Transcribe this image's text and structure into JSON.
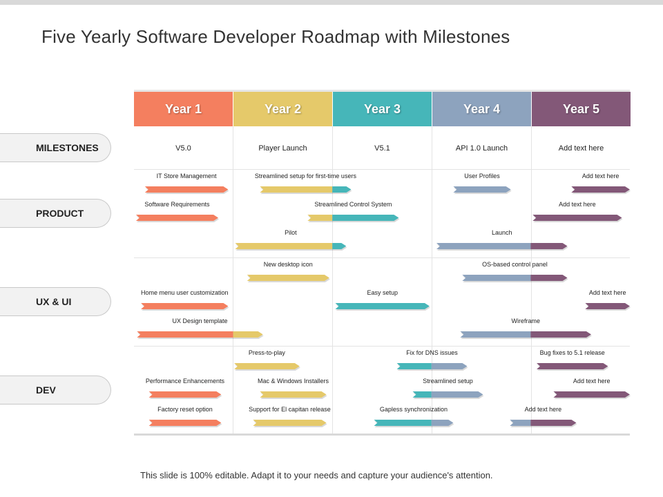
{
  "title": "Five Yearly Software Developer Roadmap with Milestones",
  "years": [
    {
      "label": "Year 1",
      "color": "#F47F5F"
    },
    {
      "label": "Year 2",
      "color": "#E5C96A"
    },
    {
      "label": "Year 3",
      "color": "#46B6B9"
    },
    {
      "label": "Year 4",
      "color": "#8DA3BE"
    },
    {
      "label": "Year 5",
      "color": "#835878"
    }
  ],
  "milestones": {
    "label": "MILESTONES",
    "values": [
      "V5.0",
      "Player Launch",
      "V5.1",
      "API 1.0 Launch",
      "Add text here"
    ]
  },
  "sections": [
    {
      "label": "PRODUCT",
      "rows": [
        [
          {
            "text": "IT Store Management",
            "start": 0.11,
            "end": 0.95
          },
          {
            "text": "Streamlined setup for first-time users",
            "start": 1.27,
            "end": 2.19
          },
          {
            "text": "User Profiles",
            "start": 3.22,
            "end": 3.8
          },
          {
            "text": "Add text here",
            "start": 4.41,
            "end": 5.0
          }
        ],
        [
          {
            "text": "Software Requirements",
            "start": 0.02,
            "end": 0.85
          },
          {
            "text": "Streamlined Control System",
            "start": 1.75,
            "end": 2.67
          },
          {
            "text": "Add text here",
            "start": 4.02,
            "end": 4.92
          }
        ],
        [
          {
            "text": "Pilot",
            "start": 1.02,
            "end": 2.14
          },
          {
            "text": "Launch",
            "start": 3.05,
            "end": 4.37
          }
        ]
      ]
    },
    {
      "label": "UX & UI",
      "rows": [
        [
          {
            "text": "New desktop icon",
            "start": 1.14,
            "end": 1.97
          },
          {
            "text": "OS-based control panel",
            "start": 3.31,
            "end": 4.37
          }
        ],
        [
          {
            "text": "Home menu user customization",
            "start": 0.07,
            "end": 0.95
          },
          {
            "text": "Easy setup",
            "start": 2.03,
            "end": 2.98
          },
          {
            "text": "Add text here",
            "start": 4.55,
            "end": 5.0
          }
        ],
        [
          {
            "text": "UX Design template",
            "start": 0.03,
            "end": 1.3
          },
          {
            "text": "Wireframe",
            "start": 3.29,
            "end": 4.61
          }
        ]
      ]
    },
    {
      "label": "DEV",
      "rows": [
        [
          {
            "text": "Press-to-play",
            "start": 1.01,
            "end": 1.67
          },
          {
            "text": "Fix for DNS issues",
            "start": 2.65,
            "end": 3.36
          },
          {
            "text": "Bug fixes to 5.1 release",
            "start": 4.06,
            "end": 4.78
          }
        ],
        [
          {
            "text": "Performance Enhancements",
            "start": 0.15,
            "end": 0.88
          },
          {
            "text": "Mac & Windows Installers",
            "start": 1.27,
            "end": 1.94
          },
          {
            "text": "Streamlined setup",
            "start": 2.81,
            "end": 3.52
          },
          {
            "text": "Add text here",
            "start": 4.23,
            "end": 5.0
          }
        ],
        [
          {
            "text": "Factory reset option",
            "start": 0.15,
            "end": 0.88
          },
          {
            "text": "Support for El capitan release",
            "start": 1.2,
            "end": 1.94
          },
          {
            "text": "Gapless synchronization",
            "start": 2.42,
            "end": 3.22
          },
          {
            "text": "Add text here",
            "start": 3.79,
            "end": 4.46
          }
        ]
      ]
    }
  ],
  "footer": "This slide is 100% editable. Adapt it to your needs and capture your audience's attention."
}
